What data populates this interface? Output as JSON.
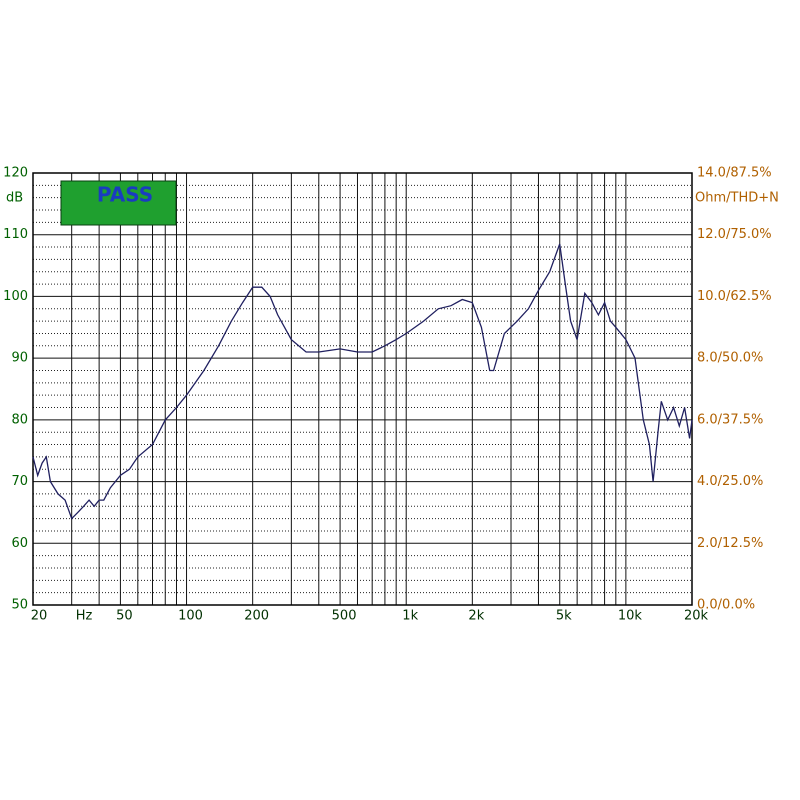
{
  "chart_data": {
    "type": "line",
    "badge": "PASS",
    "y_label": "dB",
    "y2_label": "Ohm/THD+N",
    "x_label": "Hz",
    "log_x": true,
    "grid": true,
    "color": "#202060",
    "x": [
      20,
      21,
      22,
      23,
      24,
      26,
      28,
      30,
      32,
      34,
      36,
      38,
      40,
      42,
      45,
      50,
      55,
      60,
      70,
      80,
      90,
      100,
      120,
      140,
      160,
      180,
      200,
      220,
      240,
      260,
      300,
      350,
      400,
      500,
      600,
      700,
      800,
      900,
      1000,
      1200,
      1400,
      1600,
      1800,
      2000,
      2200,
      2400,
      2500,
      2800,
      3200,
      3600,
      4000,
      4500,
      5000,
      5300,
      5600,
      6000,
      6500,
      7000,
      7500,
      8000,
      8500,
      9000,
      10000,
      11000,
      12000,
      12800,
      13300,
      14000,
      14500,
      15500,
      16500,
      17500,
      18500,
      19500,
      20000
    ],
    "values": [
      74,
      71,
      73,
      74,
      70,
      68,
      67,
      64,
      65,
      66,
      67,
      66,
      67,
      67,
      69,
      71,
      72,
      74,
      76,
      80,
      82,
      84,
      88,
      92,
      96,
      99,
      101.5,
      101.5,
      100,
      97,
      93,
      91,
      91,
      91.5,
      91,
      91,
      92,
      93,
      94,
      96,
      98,
      98.5,
      99.5,
      99,
      95,
      88,
      88,
      94,
      96,
      98,
      101,
      104,
      108.5,
      102,
      96,
      93,
      100.5,
      99,
      97,
      99,
      96,
      95,
      93,
      90,
      80,
      76,
      70,
      78,
      83,
      80,
      82,
      79,
      82,
      77,
      80
    ],
    "xlim": [
      20,
      20000
    ],
    "xticks": [
      20,
      50,
      100,
      200,
      500,
      {
        "value": 1000,
        "label": "1k"
      },
      {
        "value": 2000,
        "label": "2k"
      },
      {
        "value": 5000,
        "label": "5k"
      },
      {
        "value": 10000,
        "label": "10k"
      },
      {
        "value": 20000,
        "label": "20k"
      }
    ],
    "ylim": [
      50,
      120
    ],
    "yticks": [
      50,
      60,
      70,
      80,
      90,
      100,
      110,
      120
    ],
    "y2lim": [
      0,
      14
    ],
    "y2ticks": [
      {
        "value": 0,
        "label": "0.0/0.0%"
      },
      {
        "value": 2,
        "label": "2.0/12.5%"
      },
      {
        "value": 4,
        "label": "4.0/25.0%"
      },
      {
        "value": 6,
        "label": "6.0/37.5%"
      },
      {
        "value": 8,
        "label": "8.0/50.0%"
      },
      {
        "value": 10,
        "label": "10.0/62.5%"
      },
      {
        "value": 12,
        "label": "12.0/75.0%"
      },
      {
        "value": 14,
        "label": "14.0/87.5%"
      }
    ]
  }
}
